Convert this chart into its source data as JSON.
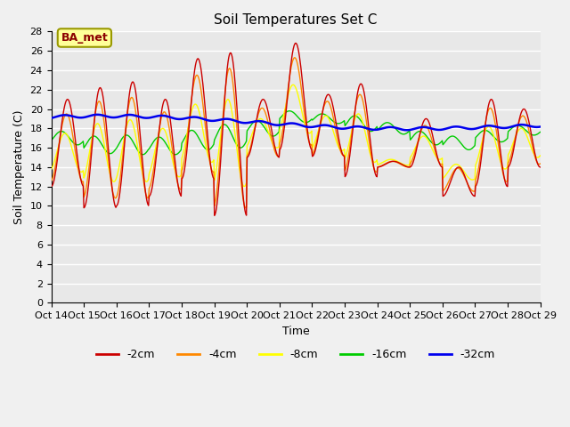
{
  "title": "Soil Temperatures Set C",
  "xlabel": "Time",
  "ylabel": "Soil Temperature (C)",
  "xlim": [
    0,
    15
  ],
  "ylim": [
    0,
    28
  ],
  "yticks": [
    0,
    2,
    4,
    6,
    8,
    10,
    12,
    14,
    16,
    18,
    20,
    22,
    24,
    26,
    28
  ],
  "xtick_labels": [
    "Oct 14",
    "Oct 15",
    "Oct 16",
    "Oct 17",
    "Oct 18",
    "Oct 19",
    "Oct 20",
    "Oct 21",
    "Oct 22",
    "Oct 23",
    "Oct 24",
    "Oct 25",
    "Oct 26",
    "Oct 27",
    "Oct 28",
    "Oct 29"
  ],
  "bg_color": "#e8e8e8",
  "fig_color": "#f0f0f0",
  "grid_color": "#ffffff",
  "series_colors": [
    "#cc0000",
    "#ff8800",
    "#ffff00",
    "#00cc00",
    "#0000ee"
  ],
  "series_labels": [
    "-2cm",
    "-4cm",
    "-8cm",
    "-16cm",
    "-32cm"
  ],
  "annotation_text": "BA_met",
  "annotation_bg": "#ffff99",
  "annotation_border": "#999900",
  "lw_shallow": 1.0,
  "lw_deep": 1.8
}
